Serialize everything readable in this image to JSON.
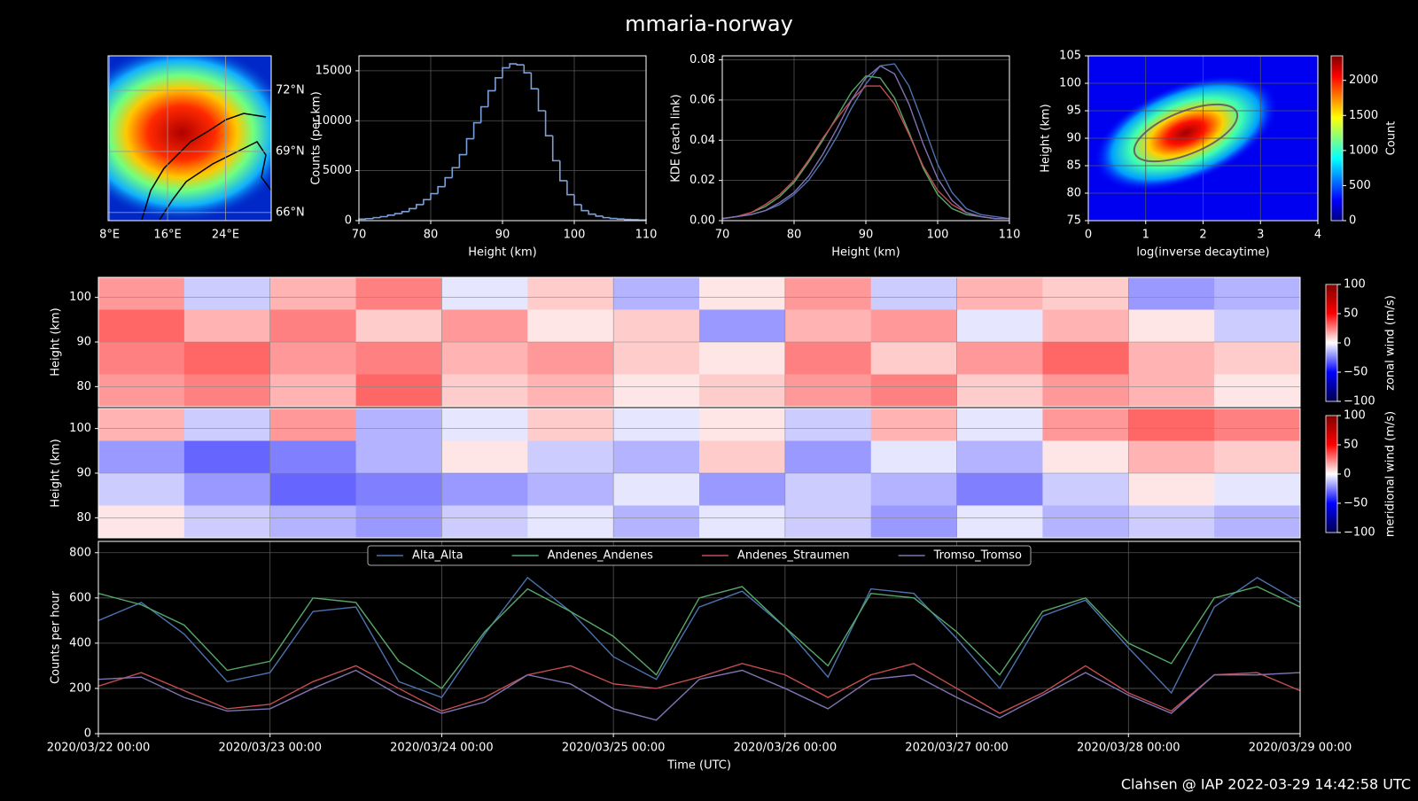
{
  "title": "mmaria-norway",
  "footer": "Clahsen @ IAP 2022-03-29 14:42:58 UTC",
  "chart_data": [
    {
      "type": "map",
      "xlim": [
        7.8,
        30.3
      ],
      "ylim": [
        65.6,
        73.7
      ],
      "grid": true,
      "xticks": [
        {
          "value": 8,
          "label": "8°E"
        },
        {
          "value": 16,
          "label": "16°E"
        },
        {
          "value": 24,
          "label": "24°E"
        }
      ],
      "yticks": [
        {
          "value": 72,
          "label": "72°N"
        },
        {
          "value": 69,
          "label": "69°N"
        },
        {
          "value": 66,
          "label": "66°N"
        }
      ]
    },
    {
      "type": "histogram",
      "xlabel": "Height (km)",
      "ylabel": "Counts (per km)",
      "color": "#7b9fd9",
      "grid": true,
      "xlim": [
        70,
        110
      ],
      "xticks": [
        70,
        80,
        90,
        100,
        110
      ],
      "ylim": [
        0,
        16500
      ],
      "yticks": [
        0,
        5000,
        10000,
        15000
      ],
      "bins": [
        70,
        71,
        72,
        73,
        74,
        75,
        76,
        77,
        78,
        79,
        80,
        81,
        82,
        83,
        84,
        85,
        86,
        87,
        88,
        89,
        90,
        91,
        92,
        93,
        94,
        95,
        96,
        97,
        98,
        99,
        100,
        101,
        102,
        103,
        104,
        105,
        106,
        107,
        108,
        109,
        110
      ],
      "values": [
        150,
        200,
        300,
        400,
        550,
        700,
        900,
        1200,
        1600,
        2100,
        2700,
        3400,
        4300,
        5300,
        6600,
        8200,
        9800,
        11400,
        13000,
        14300,
        15300,
        15700,
        15600,
        14800,
        13200,
        11000,
        8500,
        6000,
        4000,
        2600,
        1600,
        1000,
        650,
        450,
        300,
        220,
        160,
        120,
        90,
        60
      ]
    },
    {
      "type": "line",
      "xlabel": "Height (km)",
      "ylabel": "KDE (each link)",
      "grid": true,
      "xlim": [
        70,
        110
      ],
      "xticks": [
        70,
        80,
        90,
        100,
        110
      ],
      "ylim": [
        0,
        0.082
      ],
      "yticks": [
        {
          "value": 0,
          "label": "0.00"
        },
        {
          "value": 0.02,
          "label": "0.02"
        },
        {
          "value": 0.04,
          "label": "0.04"
        },
        {
          "value": 0.06,
          "label": "0.06"
        },
        {
          "value": 0.08,
          "label": "0.08"
        }
      ],
      "x": [
        70,
        72,
        74,
        76,
        78,
        80,
        82,
        84,
        86,
        88,
        90,
        92,
        94,
        96,
        98,
        100,
        102,
        104,
        106,
        108,
        110
      ],
      "series": [
        {
          "color": "#4c72b0",
          "values": [
            0.001,
            0.002,
            0.003,
            0.005,
            0.008,
            0.013,
            0.02,
            0.03,
            0.042,
            0.056,
            0.068,
            0.077,
            0.078,
            0.067,
            0.048,
            0.028,
            0.014,
            0.006,
            0.003,
            0.002,
            0.001
          ]
        },
        {
          "color": "#55a868",
          "values": [
            0.001,
            0.002,
            0.004,
            0.007,
            0.012,
            0.019,
            0.029,
            0.04,
            0.052,
            0.064,
            0.072,
            0.071,
            0.061,
            0.044,
            0.026,
            0.013,
            0.006,
            0.003,
            0.002,
            0.001,
            0.001
          ]
        },
        {
          "color": "#c44e52",
          "values": [
            0.001,
            0.002,
            0.004,
            0.008,
            0.013,
            0.02,
            0.03,
            0.041,
            0.051,
            0.06,
            0.067,
            0.067,
            0.058,
            0.043,
            0.027,
            0.015,
            0.008,
            0.004,
            0.002,
            0.001,
            0.001
          ]
        },
        {
          "color": "#8172b3",
          "values": [
            0.001,
            0.002,
            0.003,
            0.005,
            0.009,
            0.014,
            0.022,
            0.033,
            0.046,
            0.06,
            0.071,
            0.077,
            0.073,
            0.058,
            0.038,
            0.021,
            0.01,
            0.004,
            0.002,
            0.001,
            0.001
          ]
        }
      ]
    },
    {
      "type": "hist2d",
      "xlabel": "log(inverse decaytime)",
      "ylabel": "Height (km)",
      "colorbar_label": "Count",
      "grid": true,
      "xlim": [
        0,
        4
      ],
      "xticks": [
        0,
        1,
        2,
        3,
        4
      ],
      "ylim": [
        75,
        105
      ],
      "yticks": [
        75,
        80,
        85,
        90,
        95,
        100,
        105
      ],
      "zlim": [
        0,
        2350
      ],
      "zticks": [
        0,
        500,
        1000,
        1500,
        2000
      ]
    },
    {
      "type": "heatmap",
      "ylabel": "Height (km)",
      "colorbar_label": "zonal wind (m/s)",
      "ylim": [
        75.5,
        104.5
      ],
      "yticks": [
        80,
        90,
        100
      ],
      "zlim": [
        -100,
        100
      ],
      "zticks": [
        {
          "value": -100,
          "label": "−100"
        },
        {
          "value": -50,
          "label": "−50"
        },
        0,
        50,
        100
      ],
      "values": [
        [
          40,
          -20,
          30,
          50,
          -10,
          20,
          -30,
          10,
          40,
          -20,
          30,
          20,
          -40,
          -30
        ],
        [
          60,
          30,
          50,
          20,
          40,
          10,
          20,
          -40,
          30,
          40,
          -10,
          30,
          10,
          -20
        ],
        [
          50,
          60,
          40,
          50,
          30,
          40,
          20,
          10,
          50,
          20,
          40,
          60,
          30,
          20
        ],
        [
          40,
          50,
          30,
          60,
          20,
          30,
          10,
          20,
          40,
          50,
          20,
          40,
          30,
          10
        ]
      ]
    },
    {
      "type": "heatmap",
      "ylabel": "Height (km)",
      "colorbar_label": "meridional wind (m/s)",
      "ylim": [
        75.5,
        104.5
      ],
      "yticks": [
        80,
        90,
        100
      ],
      "zlim": [
        -100,
        100
      ],
      "zticks": [
        {
          "value": -100,
          "label": "−100"
        },
        {
          "value": -50,
          "label": "−50"
        },
        0,
        50,
        100
      ],
      "values": [
        [
          30,
          -20,
          40,
          -30,
          -10,
          20,
          -10,
          10,
          -20,
          30,
          -10,
          40,
          60,
          50
        ],
        [
          -40,
          -60,
          -50,
          -30,
          10,
          -20,
          -30,
          20,
          -40,
          -10,
          -30,
          10,
          30,
          20
        ],
        [
          -20,
          -40,
          -60,
          -50,
          -40,
          -30,
          -10,
          -40,
          -20,
          -30,
          -50,
          -20,
          10,
          -10
        ],
        [
          10,
          -20,
          -30,
          -40,
          -20,
          -10,
          -30,
          -10,
          -20,
          -40,
          -10,
          -30,
          -20,
          -30
        ]
      ]
    },
    {
      "type": "line",
      "xlabel": "Time (UTC)",
      "ylabel": "Counts per hour",
      "grid": true,
      "legend": "upper center",
      "ylim": [
        0,
        850
      ],
      "yticks": [
        0,
        200,
        400,
        600,
        800
      ],
      "x": [
        "2020/03/22 00:00",
        "2020/03/22 06:00",
        "2020/03/22 12:00",
        "2020/03/22 18:00",
        "2020/03/23 00:00",
        "2020/03/23 06:00",
        "2020/03/23 12:00",
        "2020/03/23 18:00",
        "2020/03/24 00:00",
        "2020/03/24 06:00",
        "2020/03/24 12:00",
        "2020/03/24 18:00",
        "2020/03/25 00:00",
        "2020/03/25 06:00",
        "2020/03/25 12:00",
        "2020/03/25 18:00",
        "2020/03/26 00:00",
        "2020/03/26 06:00",
        "2020/03/26 12:00",
        "2020/03/26 18:00",
        "2020/03/27 00:00",
        "2020/03/27 06:00",
        "2020/03/27 12:00",
        "2020/03/27 18:00",
        "2020/03/28 00:00",
        "2020/03/28 06:00",
        "2020/03/28 12:00",
        "2020/03/28 18:00",
        "2020/03/29 00:00"
      ],
      "xticks": [
        "2020/03/22 00:00",
        "2020/03/23 00:00",
        "2020/03/24 00:00",
        "2020/03/25 00:00",
        "2020/03/26 00:00",
        "2020/03/27 00:00",
        "2020/03/28 00:00",
        "2020/03/29 00:00"
      ],
      "series": [
        {
          "name": "Alta_Alta",
          "color": "#4c72b0",
          "values": [
            500,
            580,
            440,
            230,
            270,
            540,
            560,
            230,
            160,
            440,
            690,
            540,
            340,
            240,
            560,
            630,
            470,
            250,
            640,
            620,
            420,
            200,
            520,
            590,
            380,
            180,
            560,
            690,
            580
          ]
        },
        {
          "name": "Andenes_Andenes",
          "color": "#55a868",
          "values": [
            620,
            570,
            480,
            280,
            320,
            600,
            580,
            320,
            200,
            450,
            640,
            540,
            430,
            260,
            600,
            650,
            470,
            300,
            620,
            600,
            450,
            260,
            540,
            600,
            400,
            310,
            600,
            650,
            560
          ]
        },
        {
          "name": "Andenes_Straumen",
          "color": "#c44e52",
          "values": [
            210,
            270,
            190,
            110,
            130,
            230,
            300,
            200,
            100,
            160,
            260,
            300,
            220,
            200,
            250,
            310,
            260,
            160,
            260,
            310,
            200,
            90,
            180,
            300,
            180,
            100,
            260,
            270,
            190
          ]
        },
        {
          "name": "Tromso_Tromso",
          "color": "#8172b3",
          "values": [
            240,
            250,
            160,
            100,
            110,
            200,
            280,
            170,
            90,
            140,
            260,
            220,
            110,
            60,
            240,
            280,
            200,
            110,
            240,
            260,
            160,
            70,
            170,
            270,
            170,
            90,
            260,
            260,
            270
          ]
        }
      ]
    }
  ]
}
